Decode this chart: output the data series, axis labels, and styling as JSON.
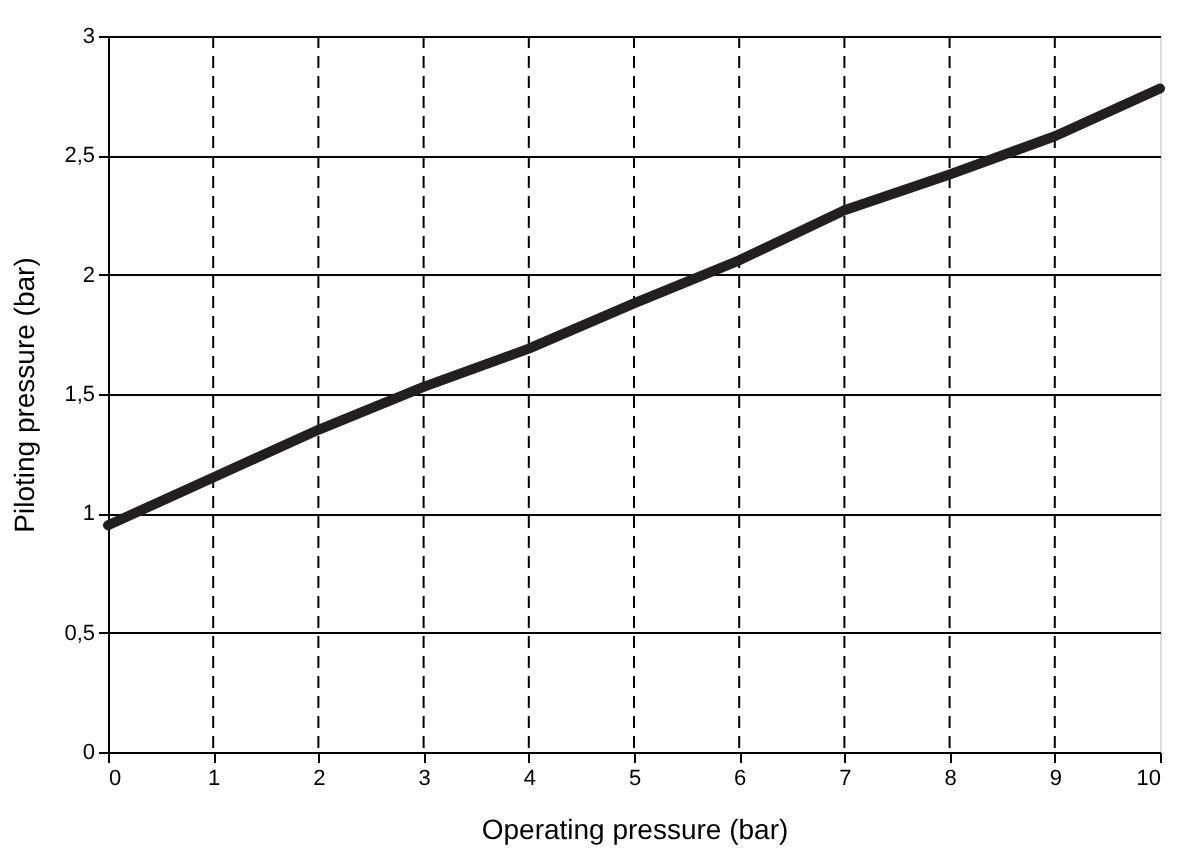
{
  "chart_data": {
    "type": "line",
    "xlabel": "Operating pressure (bar)",
    "ylabel": "Piloting pressure (bar)",
    "x": [
      0,
      1,
      2,
      3,
      4,
      5,
      6,
      7,
      8,
      9,
      10
    ],
    "series": [
      {
        "color": "#231f20",
        "values": [
          0.95,
          1.15,
          1.35,
          1.53,
          1.69,
          1.88,
          2.06,
          2.27,
          2.42,
          2.58,
          2.78
        ]
      }
    ],
    "xlim": [
      0,
      10
    ],
    "xticks": [
      0,
      1,
      2,
      3,
      4,
      5,
      6,
      7,
      8,
      9,
      10
    ],
    "ylim": [
      0,
      3
    ],
    "yticks": [
      0,
      {
        "value": 0.5,
        "label": "0,5"
      },
      1,
      {
        "value": 1.5,
        "label": "1,5"
      },
      2,
      {
        "value": 2.5,
        "label": "2,5"
      },
      3
    ],
    "grid": true,
    "legend": false,
    "marker": "none",
    "line_style": "solid"
  }
}
